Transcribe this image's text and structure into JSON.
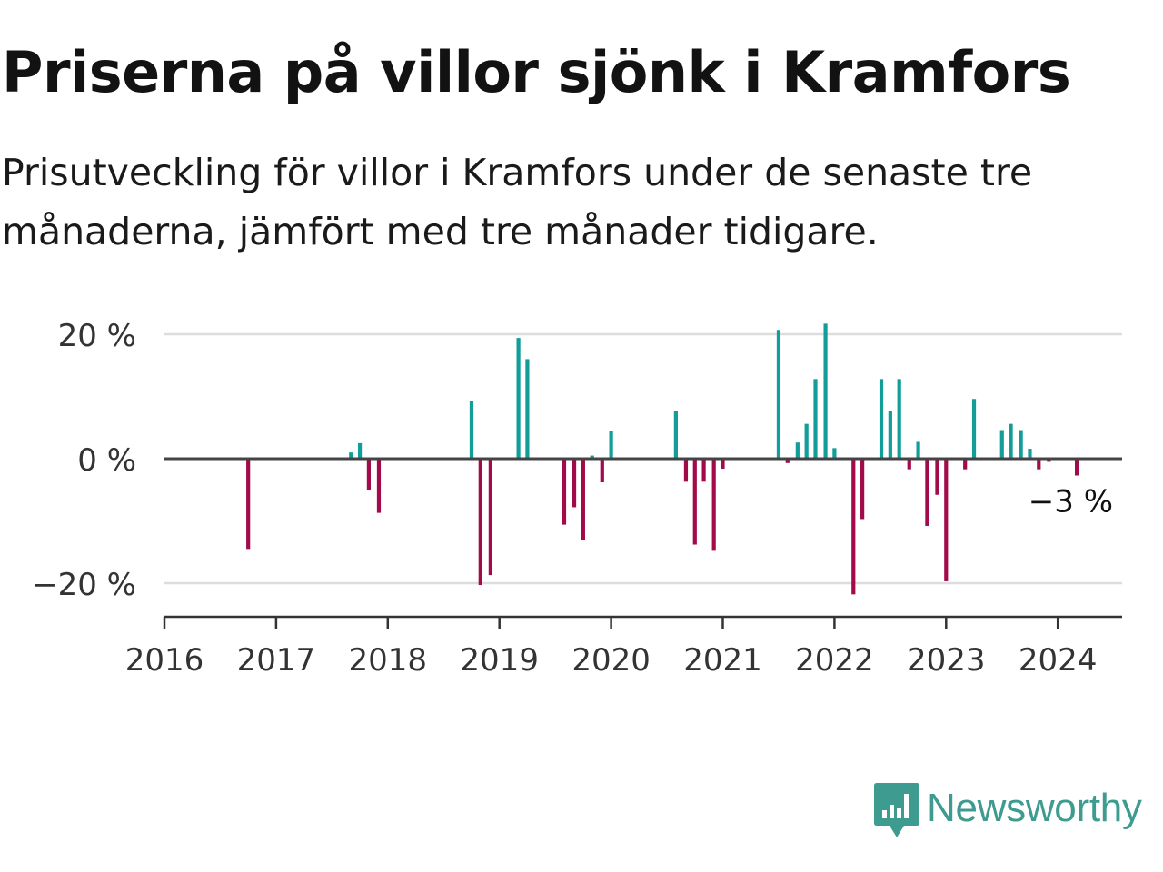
{
  "title": "Priserna på villor sjönk i Kramfors",
  "subtitle": "Prisutveckling för villor i Kramfors under de senaste tre månaderna, jämfört med tre månader tidigare.",
  "brand": {
    "name": "Newsworthy",
    "icon": "newsworthy-logo-icon",
    "color": "#3d9b8f"
  },
  "colors": {
    "positive": "#139d99",
    "negative": "#a20a49",
    "grid": "#dddddd",
    "axis": "#333333",
    "zero_line": "#444444"
  },
  "chart_data": {
    "type": "bar",
    "xlim": [
      2016,
      2024.58
    ],
    "ylim": [
      -25,
      22
    ],
    "x_ticks": [
      2016,
      2017,
      2018,
      2019,
      2020,
      2021,
      2022,
      2023,
      2024
    ],
    "x_tick_labels": [
      "2016",
      "2017",
      "2018",
      "2019",
      "2020",
      "2021",
      "2022",
      "2023",
      "2024"
    ],
    "y_ticks": [
      -20,
      0,
      20
    ],
    "y_tick_labels": [
      "−20 %",
      "0 %",
      "20 %"
    ],
    "grid": true,
    "last_value_label": "−3 %",
    "points": [
      {
        "x": 2016.75,
        "y": -14.5
      },
      {
        "x": 2017.67,
        "y": 1
      },
      {
        "x": 2017.75,
        "y": 2.5
      },
      {
        "x": 2017.83,
        "y": -5
      },
      {
        "x": 2017.92,
        "y": -8.7
      },
      {
        "x": 2018.75,
        "y": 9.3
      },
      {
        "x": 2018.83,
        "y": -20.3
      },
      {
        "x": 2018.92,
        "y": -18.7
      },
      {
        "x": 2019.17,
        "y": 19.4
      },
      {
        "x": 2019.25,
        "y": 16
      },
      {
        "x": 2019.58,
        "y": -10.6
      },
      {
        "x": 2019.67,
        "y": -7.8
      },
      {
        "x": 2019.75,
        "y": -13
      },
      {
        "x": 2019.83,
        "y": 0.5
      },
      {
        "x": 2019.92,
        "y": -3.8
      },
      {
        "x": 2020.0,
        "y": 4.5
      },
      {
        "x": 2020.58,
        "y": 7.6
      },
      {
        "x": 2020.67,
        "y": -3.7
      },
      {
        "x": 2020.75,
        "y": -13.8
      },
      {
        "x": 2020.83,
        "y": -3.7
      },
      {
        "x": 2020.92,
        "y": -14.8
      },
      {
        "x": 2021.0,
        "y": -1.6
      },
      {
        "x": 2021.5,
        "y": 20.7
      },
      {
        "x": 2021.58,
        "y": -0.7
      },
      {
        "x": 2021.67,
        "y": 2.6
      },
      {
        "x": 2021.75,
        "y": 5.6
      },
      {
        "x": 2021.83,
        "y": 12.8
      },
      {
        "x": 2021.92,
        "y": 21.7
      },
      {
        "x": 2022.0,
        "y": 1.7
      },
      {
        "x": 2022.17,
        "y": -21.8
      },
      {
        "x": 2022.25,
        "y": -9.7
      },
      {
        "x": 2022.42,
        "y": 12.8
      },
      {
        "x": 2022.5,
        "y": 7.7
      },
      {
        "x": 2022.58,
        "y": 12.8
      },
      {
        "x": 2022.67,
        "y": -1.7
      },
      {
        "x": 2022.75,
        "y": 2.7
      },
      {
        "x": 2022.83,
        "y": -10.8
      },
      {
        "x": 2022.92,
        "y": -5.8
      },
      {
        "x": 2023.0,
        "y": -19.7
      },
      {
        "x": 2023.17,
        "y": -1.7
      },
      {
        "x": 2023.25,
        "y": 9.6
      },
      {
        "x": 2023.5,
        "y": 4.6
      },
      {
        "x": 2023.58,
        "y": 5.6
      },
      {
        "x": 2023.67,
        "y": 4.6
      },
      {
        "x": 2023.75,
        "y": 1.6
      },
      {
        "x": 2023.83,
        "y": -1.7
      },
      {
        "x": 2023.92,
        "y": -0.5
      },
      {
        "x": 2024.17,
        "y": -2.7
      }
    ]
  }
}
